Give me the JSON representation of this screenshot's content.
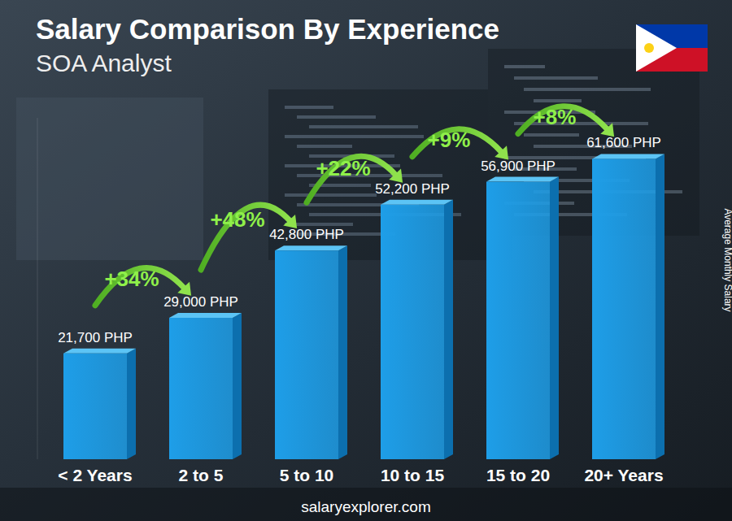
{
  "chart_data": {
    "type": "bar",
    "title": "Salary Comparison By Experience",
    "subtitle": "SOA Analyst",
    "ylabel": "Average Monthly Salary",
    "categories": [
      "< 2 Years",
      "2 to 5",
      "5 to 10",
      "10 to 15",
      "15 to 20",
      "20+ Years"
    ],
    "values": [
      21700,
      29000,
      42800,
      52200,
      56900,
      61600
    ],
    "value_labels": [
      "21,700 PHP",
      "29,000 PHP",
      "42,800 PHP",
      "52,200 PHP",
      "56,900 PHP",
      "61,600 PHP"
    ],
    "data_labels": true,
    "annotations": [
      "+34%",
      "+48%",
      "+22%",
      "+9%",
      "+8%"
    ],
    "source": "salaryexplorer.com",
    "color": "#1e9ee8",
    "ylim": [
      0,
      70000
    ],
    "tick_labels": "x",
    "grid": false
  }
}
